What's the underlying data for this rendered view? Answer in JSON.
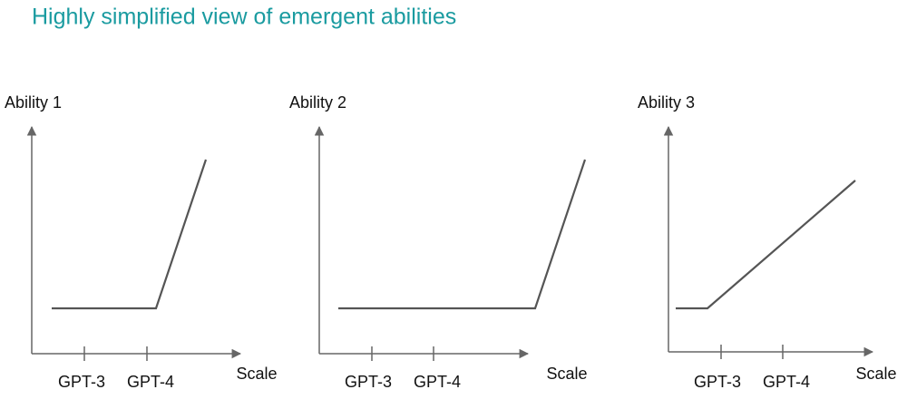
{
  "header": {
    "title": "Highly simplified view of emergent abilities"
  },
  "panels": [
    {
      "y_label": "Ability 1",
      "x_label": "Scale",
      "ticks": [
        "GPT-3",
        "GPT-4"
      ]
    },
    {
      "y_label": "Ability 2",
      "x_label": "Scale",
      "ticks": [
        "GPT-3",
        "GPT-4"
      ]
    },
    {
      "y_label": "Ability 3",
      "x_label": "Scale",
      "ticks": [
        "GPT-3",
        "GPT-4"
      ]
    }
  ]
}
